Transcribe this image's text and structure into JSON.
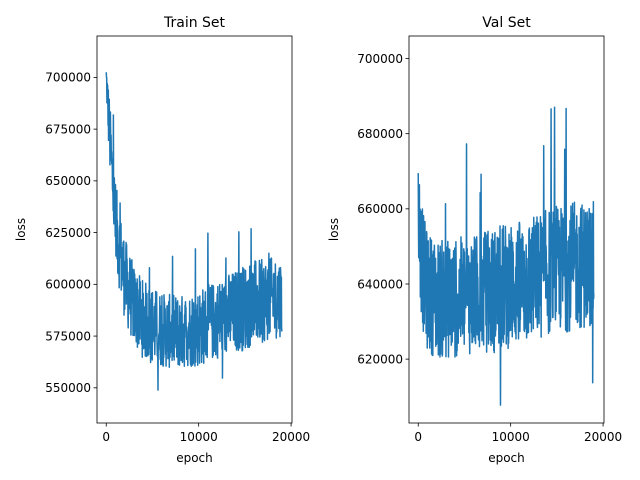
{
  "chart_data": [
    {
      "type": "line",
      "title": "Train Set",
      "xlabel": "epoch",
      "ylabel": "loss",
      "xlim": [
        -1000,
        20100
      ],
      "ylim": [
        533000,
        720000
      ],
      "xticks": [
        0,
        10000,
        20000
      ],
      "xtick_labels": [
        "0",
        "10000",
        "20000"
      ],
      "yticks": [
        550000,
        575000,
        600000,
        625000,
        650000,
        675000,
        700000
      ],
      "ytick_labels": [
        "550000",
        "575000",
        "600000",
        "625000",
        "650000",
        "675000",
        "700000"
      ],
      "grid": false,
      "color": "#1f77b4",
      "series": [
        {
          "x": [
            0,
            200,
            400,
            600,
            800,
            1000,
            1500,
            2000,
            2500,
            3000,
            3500,
            4000,
            5000,
            6000,
            7000,
            8000,
            9000,
            10000,
            11000,
            12000,
            13000,
            14000,
            15000,
            16000,
            17000,
            18000,
            19000
          ],
          "y": [
            700000,
            685000,
            670000,
            655000,
            642000,
            630000,
            615000,
            603000,
            596000,
            590000,
            586000,
            583000,
            580000,
            578000,
            577000,
            577000,
            578000,
            579000,
            581000,
            583000,
            585000,
            587000,
            589000,
            591000,
            592000,
            593000,
            594000
          ],
          "band": [
            8000,
            14000,
            18000,
            18000,
            20000,
            20000,
            20000,
            20000,
            20000,
            19000,
            19000,
            19000,
            19000,
            18000,
            18000,
            18000,
            18000,
            19000,
            19000,
            19000,
            20000,
            20000,
            21000,
            21000,
            20000,
            20000,
            19000
          ]
        }
      ]
    },
    {
      "type": "line",
      "title": "Val Set",
      "xlabel": "epoch",
      "ylabel": "loss",
      "xlim": [
        -1000,
        20100
      ],
      "ylim": [
        603000,
        706000
      ],
      "xticks": [
        0,
        10000,
        20000
      ],
      "xtick_labels": [
        "0",
        "10000",
        "20000"
      ],
      "yticks": [
        620000,
        640000,
        660000,
        680000,
        700000
      ],
      "ytick_labels": [
        "620000",
        "640000",
        "660000",
        "680000",
        "700000"
      ],
      "grid": false,
      "color": "#1f77b4",
      "series": [
        {
          "x": [
            0,
            200,
            400,
            600,
            800,
            1000,
            1500,
            2000,
            3000,
            4000,
            5000,
            6000,
            7000,
            8000,
            9000,
            10000,
            11000,
            12000,
            13000,
            14000,
            15000,
            16000,
            17000,
            18000,
            19000
          ],
          "y": [
            660000,
            652000,
            646000,
            642000,
            640000,
            638000,
            637000,
            636000,
            636000,
            636000,
            637000,
            637000,
            638000,
            638000,
            639000,
            640000,
            640000,
            641000,
            642000,
            643000,
            644000,
            644000,
            645000,
            645000,
            645000
          ],
          "band": [
            14000,
            16000,
            16000,
            16000,
            16000,
            16000,
            16000,
            16000,
            16000,
            16000,
            16000,
            16000,
            16000,
            17000,
            17000,
            17000,
            17000,
            17000,
            17000,
            17000,
            17000,
            17000,
            17000,
            17000,
            17000
          ]
        }
      ]
    }
  ]
}
